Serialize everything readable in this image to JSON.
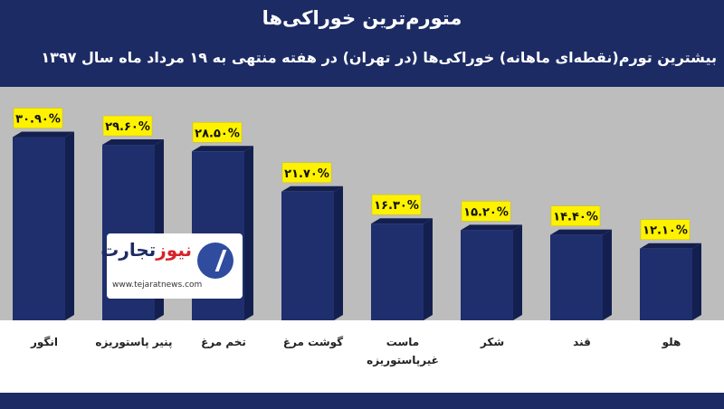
{
  "header": {
    "title": "متورم‌ترین خوراکی‌ها",
    "subtitle": "بیشترین تورم(نقطه‌ای ماهانه) خوراکی‌ها (در تهران) در هفته منتهی به ۱۹ مرداد ماه سال ۱۳۹۷"
  },
  "logo": {
    "name_part1": "تجارت",
    "name_part2": "نیوز",
    "url": "www.tejaratnews.com",
    "icon": "tejarat-news-logo-icon"
  },
  "colors": {
    "bar": "#1f2f6e",
    "bar_side": "#13204f",
    "value_box": "#fff200",
    "background": "#bdbdbd"
  },
  "chart_data": {
    "type": "bar",
    "title": "متورم‌ترین خوراکی‌ها",
    "subtitle": "بیشترین تورم(نقطه‌ای ماهانه) خوراکی‌ها (در تهران) در هفته منتهی به ۱۹ مرداد ماه سال ۱۳۹۷",
    "categories": [
      "انگور",
      "پنیر پاستوریزه",
      "تخم مرغ",
      "گوشت مرغ",
      "ماست غیرپاستوریزه",
      "شکر",
      "قند",
      "هلو"
    ],
    "category_lines": [
      [
        "انگور"
      ],
      [
        "پنیر پاستوریزه"
      ],
      [
        "تخم مرغ"
      ],
      [
        "گوشت مرغ"
      ],
      [
        "ماست",
        "غیرپاستوریزه"
      ],
      [
        "شکر"
      ],
      [
        "قند"
      ],
      [
        "هلو"
      ]
    ],
    "values": [
      30.9,
      29.6,
      28.5,
      21.7,
      16.3,
      15.2,
      14.4,
      12.1
    ],
    "value_labels": [
      "۳۰.۹۰%",
      "۲۹.۶۰%",
      "۲۸.۵۰%",
      "۲۱.۷۰%",
      "۱۶.۳۰%",
      "۱۵.۲۰%",
      "۱۴.۴۰%",
      "۱۲.۱۰%"
    ],
    "unit": "%",
    "ylim": [
      0,
      38
    ],
    "xlabel": "",
    "ylabel": "",
    "grid": false,
    "legend": "none"
  }
}
